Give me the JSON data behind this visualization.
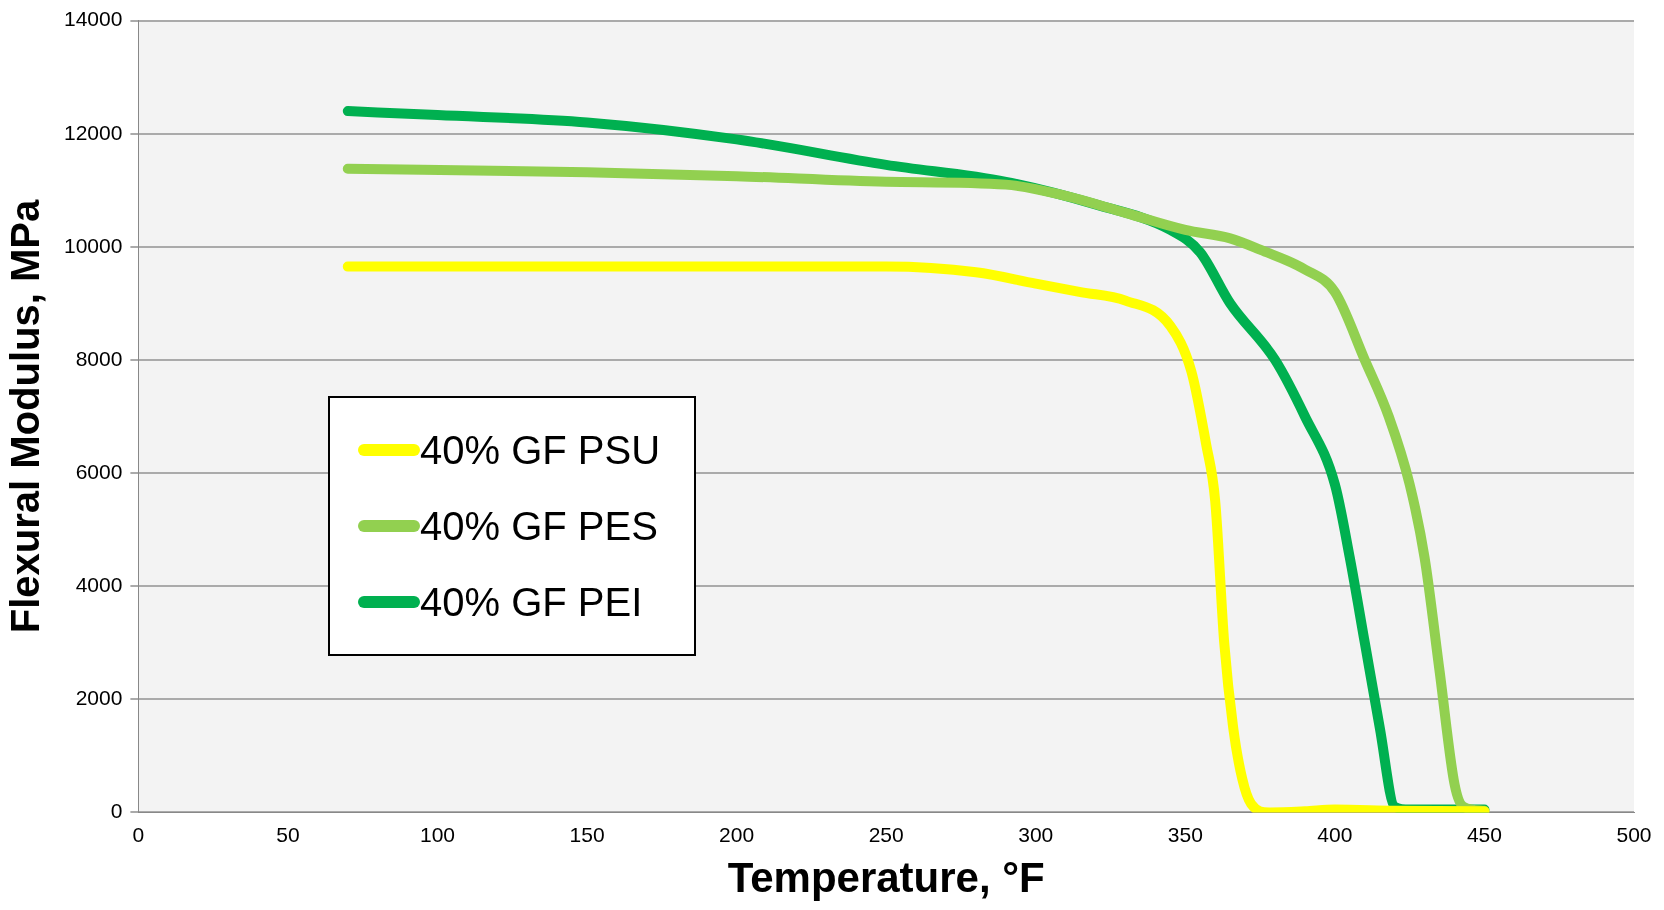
{
  "chart_data": {
    "type": "line",
    "xlabel": "Temperature, °F",
    "ylabel": "Flexural Modulus, MPa",
    "xlim": [
      0,
      500
    ],
    "xticks": [
      0,
      50,
      100,
      150,
      200,
      250,
      300,
      350,
      400,
      450,
      500
    ],
    "ylim": [
      0,
      14000
    ],
    "yticks": [
      0,
      2000,
      4000,
      6000,
      8000,
      10000,
      12000,
      14000
    ],
    "grid": "y",
    "legend": "left",
    "marker": "none",
    "line_style": "solid",
    "series": [
      {
        "name": "40% GF PSU",
        "color": "#ffff00",
        "x": [
          70,
          150,
          200,
          250,
          280,
          300,
          315,
          330,
          345,
          352,
          357,
          360,
          363,
          366,
          369,
          372,
          378,
          390,
          400,
          420,
          450
        ],
        "values": [
          9650,
          9650,
          9650,
          9650,
          9550,
          9350,
          9200,
          9050,
          8600,
          7800,
          6500,
          5500,
          3000,
          1500,
          600,
          150,
          0,
          20,
          50,
          30,
          20
        ]
      },
      {
        "name": "40% GF PES",
        "color": "#92d050",
        "x": [
          70,
          150,
          200,
          250,
          290,
          310,
          330,
          350,
          365,
          375,
          390,
          400,
          410,
          418,
          425,
          430,
          435,
          440,
          443,
          450
        ],
        "values": [
          11380,
          11320,
          11250,
          11150,
          11100,
          10900,
          10600,
          10300,
          10150,
          9950,
          9600,
          9200,
          8000,
          7000,
          5800,
          4500,
          2500,
          500,
          100,
          30
        ]
      },
      {
        "name": "40% GF PEI",
        "color": "#00b050",
        "x": [
          70,
          100,
          150,
          200,
          250,
          290,
          320,
          345,
          355,
          365,
          380,
          390,
          400,
          405,
          410,
          415,
          420,
          425,
          450
        ],
        "values": [
          12400,
          12330,
          12200,
          11900,
          11450,
          11150,
          10750,
          10300,
          9900,
          9000,
          8000,
          7000,
          5800,
          4500,
          3000,
          1500,
          100,
          50,
          50
        ]
      }
    ]
  }
}
